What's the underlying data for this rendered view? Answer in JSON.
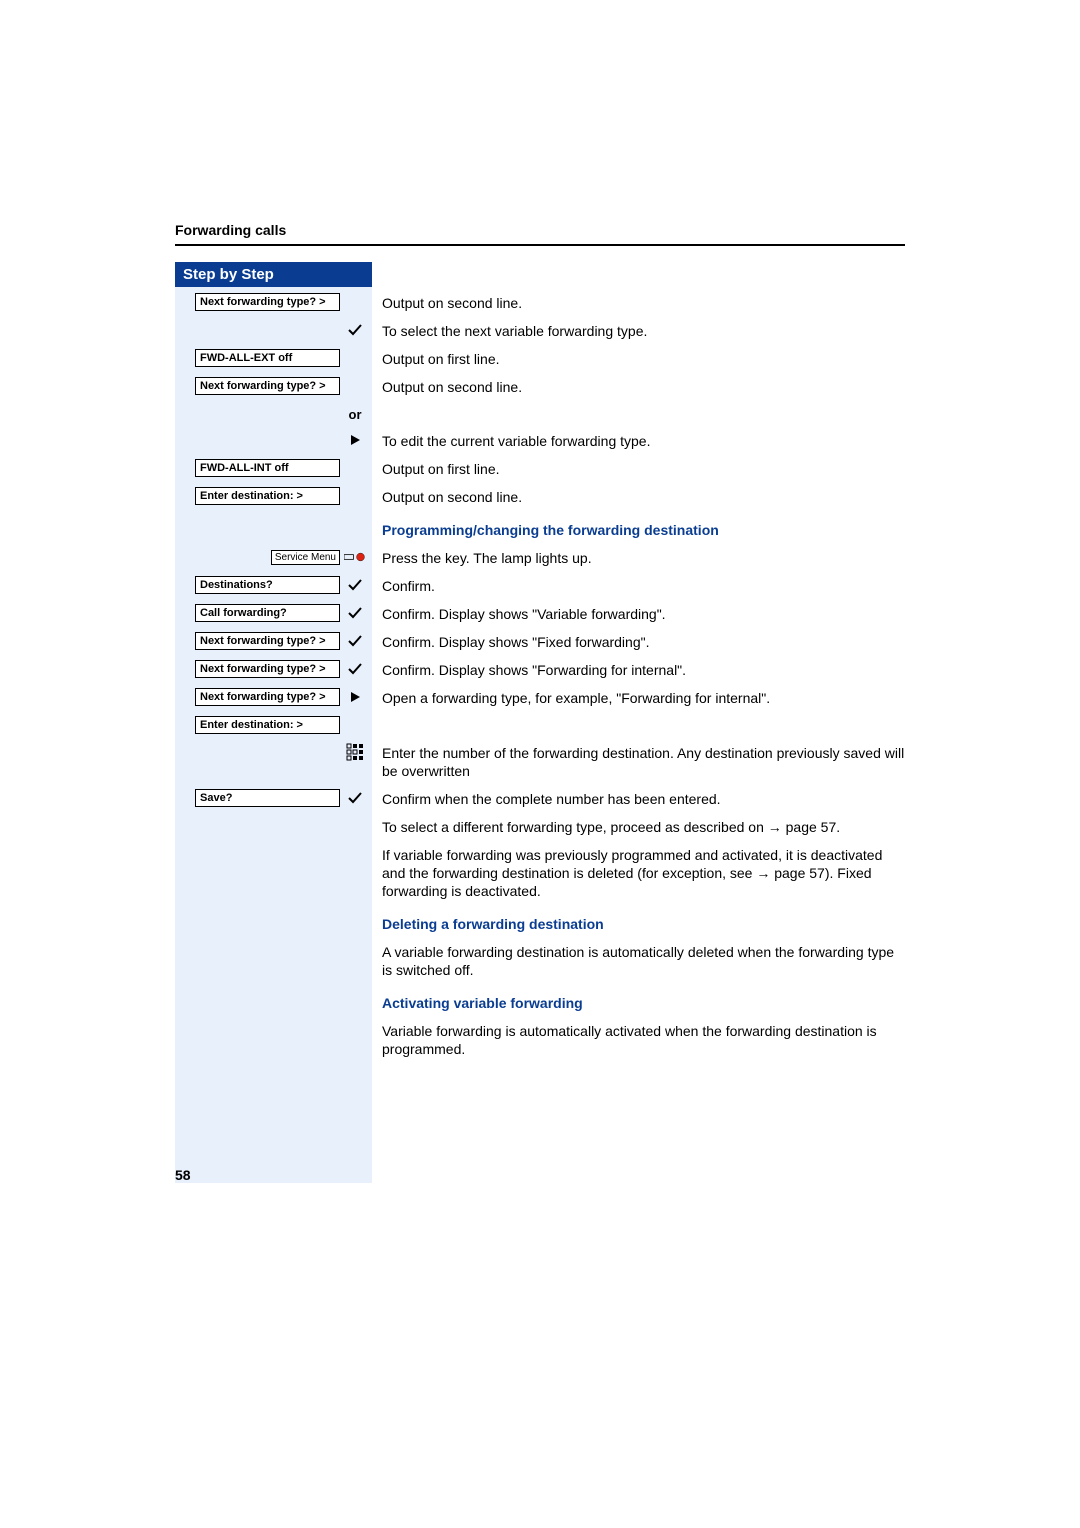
{
  "colors": {
    "brand_blue": "#0a3d91",
    "strip_bg": "#e8f1fb",
    "text": "#000000",
    "page_bg": "#ffffff",
    "rule": "#000000"
  },
  "typography": {
    "base_family": "Arial, Helvetica, sans-serif",
    "header_size_pt": 10,
    "sbs_size_pt": 11,
    "body_size_pt": 10,
    "menu_size_pt": 8
  },
  "header": {
    "section": "Forwarding calls",
    "step_by_step": "Step by Step"
  },
  "page_number": "58",
  "rows": [
    {
      "left_box": "Next forwarding type?  >",
      "icon": "",
      "right": "Output on second line."
    },
    {
      "left_box": "",
      "icon": "check",
      "right": "To select the next variable forwarding type."
    },
    {
      "left_box": "FWD-ALL-EXT off",
      "icon": "",
      "right": "Output on first line."
    },
    {
      "left_box": "Next forwarding type?  >",
      "icon": "",
      "right": "Output on second line."
    },
    {
      "left_box": "",
      "icon": "or",
      "right": ""
    },
    {
      "left_box": "",
      "icon": "play",
      "right": "To edit the current variable forwarding type."
    },
    {
      "left_box": "FWD-ALL-INT off",
      "icon": "",
      "right": "Output on first line."
    },
    {
      "left_box": "Enter destination:    >",
      "icon": "",
      "right": "Output on second line."
    },
    {
      "left_box": "",
      "icon": "",
      "right_blue": "Programming/changing the forwarding destination"
    },
    {
      "left_svc": "Service Menu",
      "icon": "lamp",
      "right": "Press the key. The lamp lights up."
    },
    {
      "left_box": "Destinations?",
      "icon": "check",
      "right": "Confirm."
    },
    {
      "left_box": "Call forwarding?",
      "icon": "check",
      "right": "Confirm. Display shows \"Variable forwarding\"."
    },
    {
      "left_box": "Next forwarding type?  >",
      "icon": "check",
      "right": "Confirm. Display shows \"Fixed forwarding\"."
    },
    {
      "left_box": "Next forwarding type?  >",
      "icon": "check",
      "right": "Confirm. Display shows \"Forwarding for internal\"."
    },
    {
      "left_box": "Next forwarding type?  >",
      "icon": "play",
      "right": "Open a forwarding type, for example, \"Forwarding for internal\"."
    },
    {
      "left_box": "Enter destination:    >",
      "icon": "",
      "right": ""
    },
    {
      "left_box": "",
      "icon": "keypad",
      "right": "Enter the number of the forwarding destination. Any destination previously saved will be overwritten"
    },
    {
      "left_box": "Save?",
      "icon": "check",
      "right": "Confirm when the complete number has been entered."
    },
    {
      "left_box": "",
      "icon": "",
      "right": "To select a different forwarding type, proceed as described on → page 57."
    },
    {
      "left_box": "",
      "icon": "",
      "right": "If variable forwarding was previously programmed and activated, it is deactivated and the forwarding destination is deleted (for exception, see → page 57). Fixed forwarding is deactivated."
    },
    {
      "left_box": "",
      "icon": "",
      "right_blue": "Deleting a forwarding destination"
    },
    {
      "left_box": "",
      "icon": "",
      "right": "A variable forwarding destination is automatically deleted when the forwarding type is switched off."
    },
    {
      "left_box": "",
      "icon": "",
      "right_blue": "Activating variable forwarding"
    },
    {
      "left_box": "",
      "icon": "",
      "right": "Variable forwarding is automatically activated when the forwarding destination is programmed."
    }
  ],
  "icons": {
    "check": "check-icon",
    "play": "play-icon",
    "lamp": "lamp-icon",
    "keypad": "keypad-icon",
    "or": "or"
  }
}
